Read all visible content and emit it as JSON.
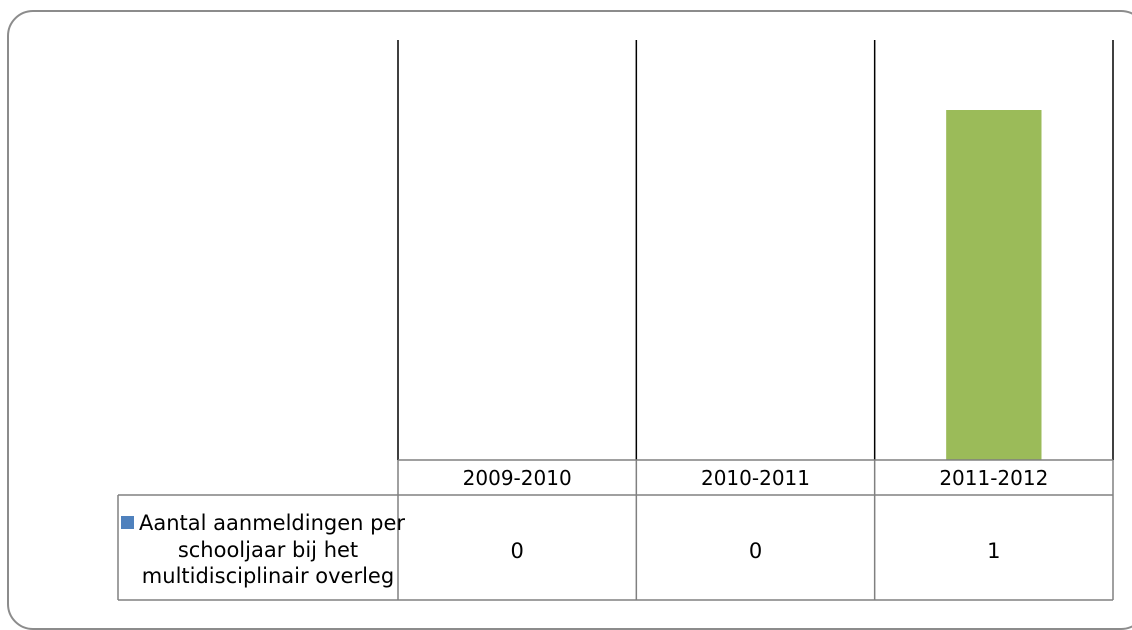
{
  "chart_data": {
    "type": "bar",
    "categories": [
      "2009-2010",
      "2010-2011",
      "2011-2012"
    ],
    "series": [
      {
        "name": "Aantal aanmeldingen per schooljaar bij het multidisciplinair overleg",
        "values": [
          0,
          0,
          1
        ],
        "color": "#9BBB59",
        "legend_color": "#4F81BD"
      }
    ],
    "ylim": [
      0,
      1.2
    ],
    "grid": false,
    "legend_placement": "data-table",
    "data_table": true,
    "legend_lines": [
      "Aantal aanmeldingen per",
      "schooljaar bij het",
      "multidisciplinair overleg"
    ]
  }
}
